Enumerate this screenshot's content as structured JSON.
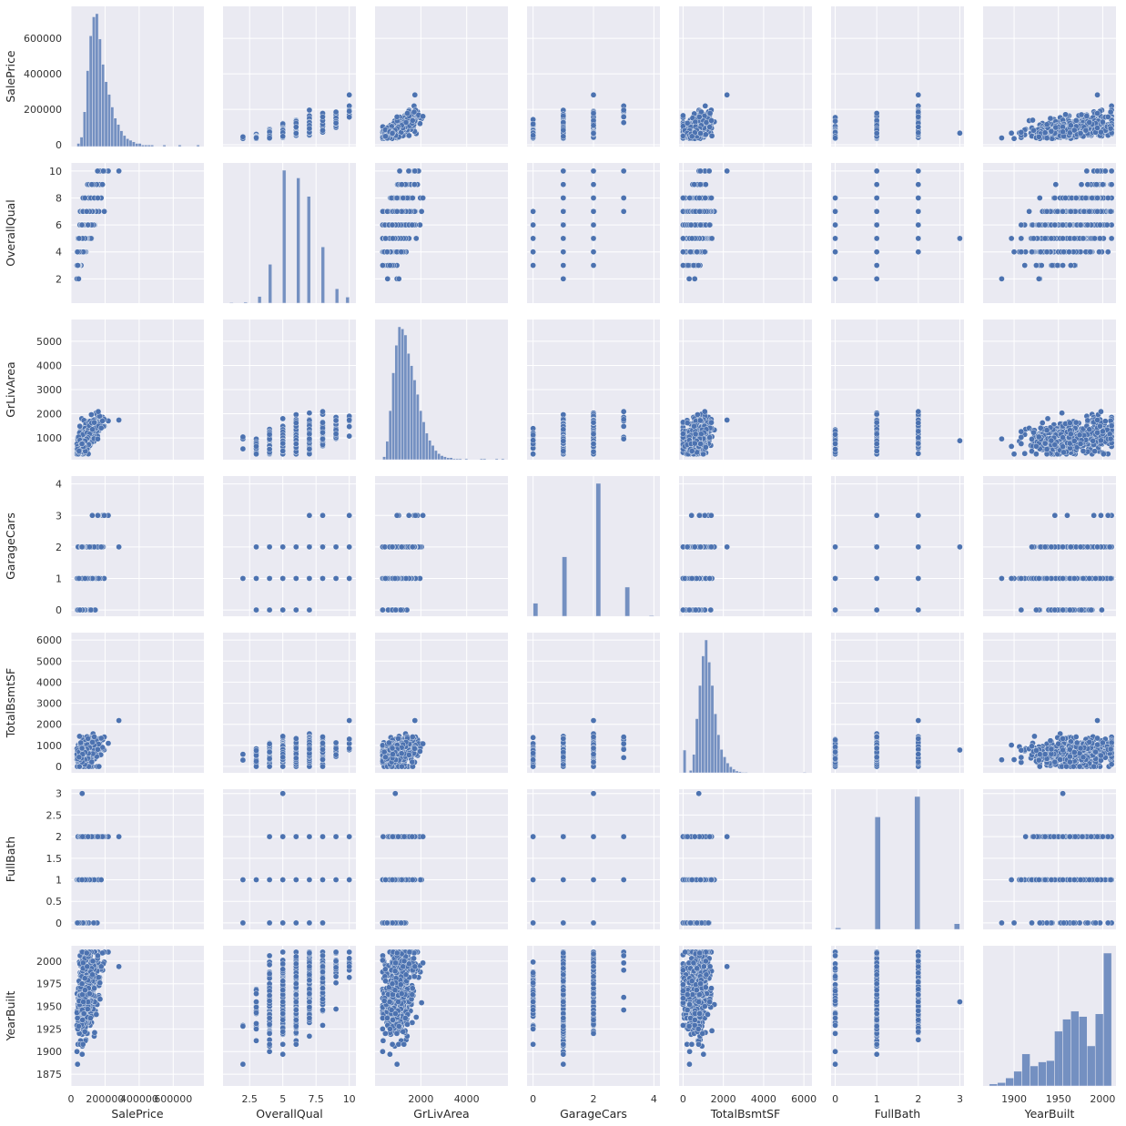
{
  "colors": {
    "panel_bg": "#eaeaf2",
    "grid": "#ffffff",
    "point": "#4c72b0",
    "point_edge": "#ffffff",
    "bar": "#4c72b0"
  },
  "chart_data": {
    "type": "scatter",
    "title": "",
    "variables": [
      {
        "name": "SalePrice",
        "xlim": [
          0,
          780000
        ],
        "ticks_x": [
          0,
          200000,
          400000,
          600000
        ],
        "ticks_y": [
          0,
          200000,
          400000,
          600000
        ],
        "hist": {
          "range": [
            34900,
            755000
          ],
          "counts": [
            2,
            6,
            22,
            48,
            70,
            82,
            84,
            68,
            52,
            41,
            33,
            25,
            18,
            14,
            10,
            7,
            5,
            4,
            3,
            2,
            2,
            1,
            1,
            1,
            1,
            0,
            0,
            0,
            1,
            0,
            0,
            0,
            0,
            1,
            0,
            0,
            0,
            0,
            0,
            1
          ]
        }
      },
      {
        "name": "OverallQual",
        "xlim": [
          0.5,
          10.5
        ],
        "ticks_x": [
          2.5,
          5.0,
          7.5,
          10.0
        ],
        "ticks_y": [
          2,
          4,
          6,
          8,
          10
        ],
        "hist": {
          "range": [
            1,
            10
          ],
          "counts": [
            2,
            0,
            0,
            0,
            3,
            0,
            0,
            0,
            20,
            0,
            0,
            116,
            0,
            0,
            0,
            397,
            0,
            0,
            0,
            374,
            0,
            0,
            319,
            0,
            0,
            0,
            168,
            0,
            0,
            0,
            43,
            0,
            0,
            18
          ]
        }
      },
      {
        "name": "GrLivArea",
        "xlim": [
          0,
          5800
        ],
        "ticks_x": [
          2000,
          4000
        ],
        "ticks_y": [
          1000,
          2000,
          3000,
          4000,
          5000
        ],
        "hist": {
          "range": [
            334,
            5642
          ],
          "counts": [
            3,
            18,
            48,
            85,
            112,
            130,
            128,
            122,
            104,
            92,
            78,
            64,
            48,
            37,
            26,
            19,
            14,
            9,
            6,
            4,
            3,
            2,
            2,
            1,
            1,
            1,
            0,
            1,
            0,
            0,
            0,
            0,
            1,
            1,
            0,
            0,
            0,
            1,
            0,
            1
          ]
        }
      },
      {
        "name": "GarageCars",
        "xlim": [
          -0.2,
          4.2
        ],
        "ticks_x": [
          0,
          2,
          4
        ],
        "ticks_y": [
          0,
          1,
          2,
          3,
          4
        ],
        "hist": {
          "range": [
            0,
            4
          ],
          "counts": [
            81,
            0,
            0,
            0,
            0,
            0,
            369,
            0,
            0,
            0,
            0,
            0,
            0,
            824,
            0,
            0,
            0,
            0,
            0,
            181,
            0,
            0,
            0,
            0,
            5
          ]
        }
      },
      {
        "name": "TotalBsmtSF",
        "xlim": [
          -200,
          6400
        ],
        "ticks_x": [
          0,
          2000,
          4000,
          6000
        ],
        "ticks_y": [
          0,
          1000,
          2000,
          3000,
          4000,
          5000,
          6000
        ],
        "hist": {
          "range": [
            0,
            6110
          ],
          "counts": [
            37,
            0,
            4,
            30,
            88,
            142,
            190,
            216,
            180,
            142,
            96,
            62,
            38,
            26,
            16,
            10,
            6,
            3,
            2,
            1,
            1,
            0,
            0,
            0,
            0,
            0,
            0,
            0,
            0,
            0,
            0,
            0,
            0,
            0,
            0,
            0,
            0,
            0,
            0,
            1
          ]
        }
      },
      {
        "name": "FullBath",
        "xlim": [
          -0.1,
          3.1
        ],
        "ticks_x": [
          0,
          1,
          2,
          3
        ],
        "ticks_y": [
          0.0,
          0.5,
          1.0,
          1.5,
          2.0,
          2.5,
          3.0
        ],
        "hist": {
          "range": [
            0,
            3
          ],
          "counts": [
            9,
            0,
            0,
            0,
            0,
            0,
            0,
            650,
            0,
            0,
            0,
            0,
            0,
            0,
            768,
            0,
            0,
            0,
            0,
            0,
            0,
            33
          ]
        }
      },
      {
        "name": "YearBuilt",
        "xlim": [
          1865,
          2015
        ],
        "ticks_x": [
          1900,
          1950,
          2000
        ],
        "ticks_y": [
          1875,
          1900,
          1925,
          1950,
          1975,
          2000
        ],
        "hist": {
          "range": [
            1872,
            2010
          ],
          "counts": [
            3,
            5,
            12,
            22,
            48,
            30,
            36,
            38,
            82,
            100,
            112,
            104,
            60,
            108,
            199
          ]
        }
      }
    ],
    "x_axis_labels": [
      "SalePrice",
      "OverallQual",
      "GrLivArea",
      "GarageCars",
      "TotalBsmtSF",
      "FullBath",
      "YearBuilt"
    ],
    "y_axis_labels": [
      "SalePrice",
      "OverallQual",
      "GrLivArea",
      "GarageCars",
      "TotalBsmtSF",
      "FullBath",
      "YearBuilt"
    ],
    "diagonal": "hist",
    "off_diagonal": "scatter",
    "grid": true
  }
}
